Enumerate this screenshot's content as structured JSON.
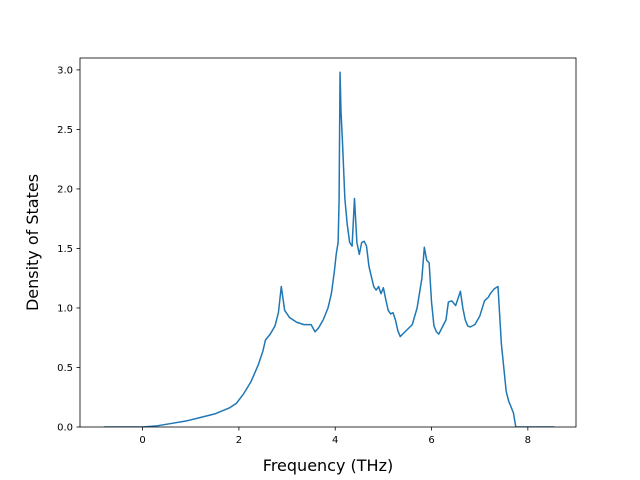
{
  "chart_data": {
    "type": "line",
    "title": "",
    "xlabel": "Frequency (THz)",
    "ylabel": "Density of States",
    "xlim": [
      -1.3,
      9.0
    ],
    "ylim": [
      0.0,
      3.1
    ],
    "xticks": [
      0,
      2,
      4,
      6,
      8
    ],
    "yticks": [
      0.0,
      0.5,
      1.0,
      1.5,
      2.0,
      2.5,
      3.0
    ],
    "xtick_labels": [
      "0",
      "2",
      "4",
      "6",
      "8"
    ],
    "ytick_labels": [
      "0.0",
      "0.5",
      "1.0",
      "1.5",
      "2.0",
      "2.5",
      "3.0"
    ],
    "grid": false,
    "legend": "none",
    "line_color": "#1f77b4",
    "series": [
      {
        "x": [
          -0.8,
          -0.4,
          0.0,
          0.3,
          0.6,
          0.9,
          1.2,
          1.5,
          1.8,
          1.95,
          2.1,
          2.25,
          2.4,
          2.5,
          2.55,
          2.65,
          2.75,
          2.82,
          2.88,
          2.95,
          3.05,
          3.2,
          3.35,
          3.5,
          3.58,
          3.65,
          3.75,
          3.85,
          3.92,
          3.98,
          4.02,
          4.06,
          4.08,
          4.1,
          4.12,
          4.15,
          4.2,
          4.25,
          4.3,
          4.35,
          4.4,
          4.45,
          4.5,
          4.55,
          4.6,
          4.65,
          4.7,
          4.8,
          4.85,
          4.9,
          4.95,
          5.0,
          5.05,
          5.1,
          5.15,
          5.2,
          5.25,
          5.3,
          5.35,
          5.4,
          5.45,
          5.5,
          5.6,
          5.7,
          5.8,
          5.85,
          5.9,
          5.95,
          6.0,
          6.05,
          6.1,
          6.15,
          6.2,
          6.3,
          6.35,
          6.42,
          6.5,
          6.6,
          6.65,
          6.7,
          6.75,
          6.8,
          6.9,
          7.0,
          7.1,
          7.18,
          7.22,
          7.3,
          7.38,
          7.45,
          7.5,
          7.55,
          7.6,
          7.7,
          7.75,
          7.8,
          8.0,
          8.3,
          8.55
        ],
        "y": [
          0.0,
          0.0,
          0.0,
          0.01,
          0.03,
          0.05,
          0.08,
          0.11,
          0.16,
          0.2,
          0.28,
          0.38,
          0.52,
          0.64,
          0.73,
          0.78,
          0.85,
          0.96,
          1.18,
          0.98,
          0.92,
          0.88,
          0.86,
          0.86,
          0.8,
          0.83,
          0.9,
          1.0,
          1.12,
          1.3,
          1.45,
          1.55,
          1.9,
          2.98,
          2.65,
          2.4,
          1.92,
          1.7,
          1.55,
          1.52,
          1.92,
          1.55,
          1.45,
          1.55,
          1.56,
          1.52,
          1.35,
          1.18,
          1.15,
          1.18,
          1.12,
          1.17,
          1.07,
          0.98,
          0.95,
          0.96,
          0.9,
          0.81,
          0.76,
          0.78,
          0.8,
          0.82,
          0.86,
          1.0,
          1.25,
          1.51,
          1.4,
          1.38,
          1.05,
          0.85,
          0.8,
          0.78,
          0.82,
          0.9,
          1.05,
          1.06,
          1.02,
          1.14,
          1.0,
          0.9,
          0.85,
          0.84,
          0.86,
          0.93,
          1.06,
          1.09,
          1.12,
          1.16,
          1.18,
          0.7,
          0.5,
          0.3,
          0.22,
          0.12,
          0.0,
          0.0,
          0.0,
          0.0,
          0.0
        ]
      }
    ]
  }
}
